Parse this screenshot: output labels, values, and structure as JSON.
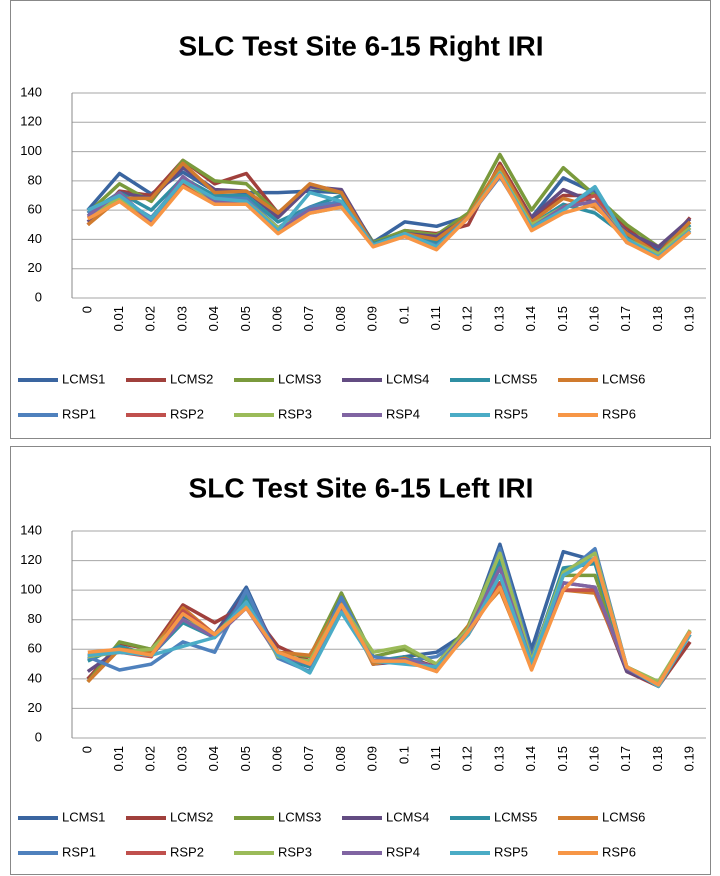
{
  "chart_data": [
    {
      "type": "line",
      "title": "SLC Test Site 6-15 Right IRI",
      "categories": [
        "0",
        "0.01",
        "0.02",
        "0.03",
        "0.04",
        "0.05",
        "0.06",
        "0.07",
        "0.08",
        "0.09",
        "0.1",
        "0.11",
        "0.12",
        "0.13",
        "0.14",
        "0.15",
        "0.16",
        "0.17",
        "0.18",
        "0.19"
      ],
      "ylim": [
        0,
        140
      ],
      "yticks": [
        0,
        20,
        40,
        60,
        80,
        100,
        120,
        140
      ],
      "grid": true,
      "legend": "bottom",
      "series": [
        {
          "name": "LCMS1",
          "color": "#3a65a0",
          "values": [
            60,
            85,
            71,
            86,
            73,
            72,
            72,
            73,
            72,
            38,
            52,
            49,
            56,
            85,
            55,
            82,
            72,
            43,
            33,
            50
          ]
        },
        {
          "name": "LCMS2",
          "color": "#a0403c",
          "values": [
            50,
            73,
            70,
            94,
            78,
            85,
            58,
            77,
            73,
            37,
            46,
            44,
            50,
            92,
            55,
            70,
            70,
            48,
            30,
            55
          ]
        },
        {
          "name": "LCMS3",
          "color": "#7a9a3c",
          "values": [
            58,
            78,
            66,
            94,
            80,
            78,
            58,
            76,
            72,
            38,
            46,
            43,
            58,
            98,
            60,
            89,
            70,
            50,
            35,
            52
          ]
        },
        {
          "name": "LCMS4",
          "color": "#634c82",
          "values": [
            52,
            72,
            68,
            89,
            74,
            73,
            55,
            76,
            74,
            37,
            44,
            42,
            55,
            85,
            55,
            74,
            65,
            45,
            35,
            54
          ]
        },
        {
          "name": "LCMS5",
          "color": "#2f8fa3",
          "values": [
            58,
            72,
            60,
            82,
            70,
            70,
            52,
            62,
            70,
            37,
            44,
            38,
            55,
            88,
            50,
            64,
            58,
            42,
            30,
            50
          ]
        },
        {
          "name": "LCMS6",
          "color": "#d07b2e",
          "values": [
            50,
            68,
            68,
            92,
            72,
            73,
            58,
            78,
            72,
            36,
            44,
            40,
            56,
            90,
            52,
            68,
            62,
            44,
            30,
            52
          ]
        },
        {
          "name": "RSP1",
          "color": "#4f81bd",
          "values": [
            58,
            68,
            55,
            80,
            68,
            68,
            48,
            62,
            66,
            36,
            43,
            36,
            55,
            83,
            48,
            60,
            75,
            40,
            28,
            48
          ]
        },
        {
          "name": "RSP2",
          "color": "#c0504d",
          "values": [
            55,
            66,
            52,
            78,
            66,
            66,
            46,
            60,
            64,
            36,
            42,
            34,
            55,
            84,
            48,
            62,
            70,
            38,
            28,
            46
          ]
        },
        {
          "name": "RSP3",
          "color": "#9bbb59",
          "values": [
            56,
            68,
            54,
            80,
            66,
            66,
            48,
            58,
            62,
            36,
            44,
            35,
            55,
            86,
            50,
            62,
            66,
            40,
            30,
            48
          ]
        },
        {
          "name": "RSP4",
          "color": "#8064a2",
          "values": [
            56,
            72,
            52,
            83,
            66,
            66,
            46,
            60,
            64,
            36,
            42,
            34,
            55,
            84,
            48,
            62,
            66,
            38,
            28,
            46
          ]
        },
        {
          "name": "RSP5",
          "color": "#4bacc6",
          "values": [
            60,
            70,
            54,
            80,
            68,
            66,
            46,
            72,
            66,
            36,
            44,
            35,
            55,
            85,
            48,
            60,
            76,
            40,
            28,
            46
          ]
        },
        {
          "name": "RSP6",
          "color": "#f79646",
          "values": [
            54,
            66,
            50,
            76,
            64,
            64,
            44,
            58,
            62,
            35,
            42,
            33,
            55,
            84,
            46,
            58,
            64,
            38,
            27,
            45
          ]
        }
      ]
    },
    {
      "type": "line",
      "title": "SLC Test Site 6-15 Left IRI",
      "categories": [
        "0",
        "0.01",
        "0.02",
        "0.03",
        "0.04",
        "0.05",
        "0.06",
        "0.07",
        "0.08",
        "0.09",
        "0.1",
        "0.11",
        "0.12",
        "0.13",
        "0.14",
        "0.15",
        "0.16",
        "0.17",
        "0.18",
        "0.19"
      ],
      "ylim": [
        0,
        140
      ],
      "yticks": [
        0,
        20,
        40,
        60,
        80,
        100,
        120,
        140
      ],
      "grid": true,
      "legend": "bottom",
      "series": [
        {
          "name": "LCMS1",
          "color": "#3a65a0",
          "values": [
            40,
            60,
            58,
            82,
            70,
            102,
            55,
            48,
            98,
            50,
            55,
            58,
            72,
            131,
            60,
            126,
            120,
            48,
            35,
            72
          ]
        },
        {
          "name": "LCMS2",
          "color": "#a0403c",
          "values": [
            40,
            64,
            60,
            90,
            78,
            90,
            62,
            52,
            95,
            50,
            55,
            48,
            75,
            105,
            48,
            100,
            100,
            45,
            35,
            65
          ]
        },
        {
          "name": "LCMS3",
          "color": "#7a9a3c",
          "values": [
            38,
            65,
            60,
            85,
            70,
            95,
            58,
            55,
            98,
            55,
            60,
            50,
            76,
            125,
            55,
            110,
            110,
            48,
            38,
            72
          ]
        },
        {
          "name": "LCMS4",
          "color": "#634c82",
          "values": [
            45,
            60,
            58,
            80,
            70,
            98,
            58,
            50,
            95,
            50,
            52,
            48,
            72,
            118,
            50,
            105,
            102,
            45,
            36,
            72
          ]
        },
        {
          "name": "LCMS5",
          "color": "#2f8fa3",
          "values": [
            52,
            62,
            56,
            78,
            68,
            96,
            56,
            48,
            95,
            52,
            55,
            47,
            74,
            120,
            52,
            115,
            118,
            48,
            35,
            72
          ]
        },
        {
          "name": "LCMS6",
          "color": "#d07b2e",
          "values": [
            38,
            60,
            58,
            88,
            70,
            90,
            58,
            56,
            92,
            50,
            54,
            45,
            76,
            100,
            48,
            100,
            98,
            48,
            36,
            70
          ]
        },
        {
          "name": "RSP1",
          "color": "#4f81bd",
          "values": [
            55,
            46,
            50,
            65,
            58,
            100,
            54,
            45,
            95,
            55,
            52,
            55,
            70,
            128,
            55,
            110,
            128,
            48,
            37,
            72
          ]
        },
        {
          "name": "RSP2",
          "color": "#c0504d",
          "values": [
            56,
            58,
            55,
            86,
            70,
            88,
            58,
            50,
            88,
            52,
            52,
            48,
            70,
            105,
            48,
            100,
            100,
            48,
            37,
            70
          ]
        },
        {
          "name": "RSP3",
          "color": "#9bbb59",
          "values": [
            55,
            58,
            60,
            80,
            70,
            90,
            55,
            52,
            90,
            58,
            62,
            50,
            74,
            125,
            52,
            112,
            125,
            48,
            38,
            73
          ]
        },
        {
          "name": "RSP4",
          "color": "#8064a2",
          "values": [
            56,
            58,
            56,
            80,
            68,
            88,
            56,
            50,
            88,
            52,
            53,
            48,
            72,
            115,
            50,
            105,
            102,
            47,
            36,
            72
          ]
        },
        {
          "name": "RSP5",
          "color": "#4bacc6",
          "values": [
            56,
            58,
            56,
            62,
            68,
            92,
            56,
            44,
            85,
            52,
            50,
            48,
            70,
            110,
            50,
            110,
            122,
            48,
            35,
            70
          ]
        },
        {
          "name": "RSP6",
          "color": "#f79646",
          "values": [
            58,
            60,
            56,
            84,
            70,
            88,
            58,
            50,
            90,
            52,
            52,
            45,
            72,
            102,
            46,
            100,
            122,
            48,
            36,
            72
          ]
        }
      ]
    }
  ]
}
